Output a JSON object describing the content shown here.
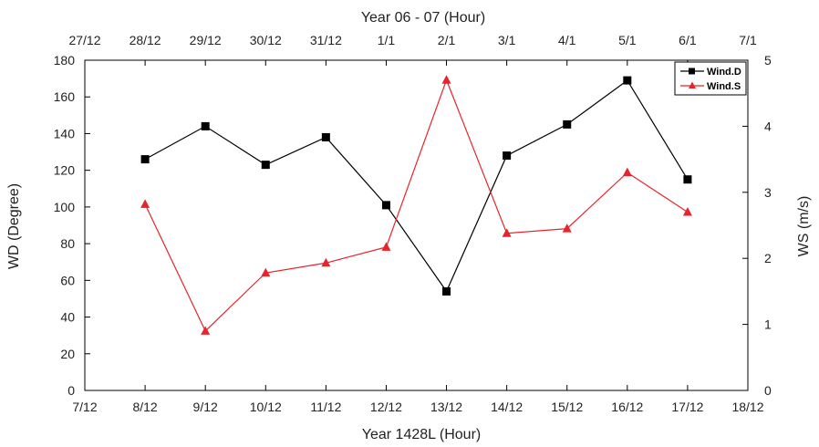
{
  "chart_data": {
    "type": "line",
    "top_axis_title": "Year 06 - 07  (Hour)",
    "xlabel": "Year 1428L (Hour)",
    "ylabel_left": "WD  (Degree)",
    "ylabel_right": "WS  (m/s)",
    "bottom_tick_labels": [
      "7/12",
      "8/12",
      "9/12",
      "10/12",
      "11/12",
      "12/12",
      "13/12",
      "14/12",
      "15/12",
      "16/12",
      "17/12",
      "18/12"
    ],
    "top_tick_labels": [
      "27/12",
      "28/12",
      "29/12",
      "30/12",
      "31/12",
      "1/1",
      "2/1",
      "3/1",
      "4/1",
      "5/1",
      "6/1",
      "7/1"
    ],
    "x": [
      8,
      9,
      10,
      11,
      12,
      13,
      14,
      15,
      16,
      17
    ],
    "xlim": [
      7,
      18
    ],
    "ylim_left": [
      0,
      180
    ],
    "yticks_left": [
      0,
      20,
      40,
      60,
      80,
      100,
      120,
      140,
      160,
      180
    ],
    "ylim_right": [
      0,
      5
    ],
    "yticks_right": [
      0,
      1,
      2,
      3,
      4,
      5
    ],
    "legend_position": "top-right",
    "series": [
      {
        "name": "Wind.D",
        "axis": "left",
        "color": "#000000",
        "marker": "square",
        "values": [
          126,
          144,
          123,
          138,
          101,
          54,
          128,
          145,
          169,
          115
        ]
      },
      {
        "name": "Wind.S",
        "axis": "right",
        "color": "#e8232b",
        "marker": "triangle",
        "values": [
          2.82,
          0.9,
          1.78,
          1.93,
          2.17,
          4.7,
          2.38,
          2.45,
          3.3,
          2.7
        ]
      }
    ]
  }
}
